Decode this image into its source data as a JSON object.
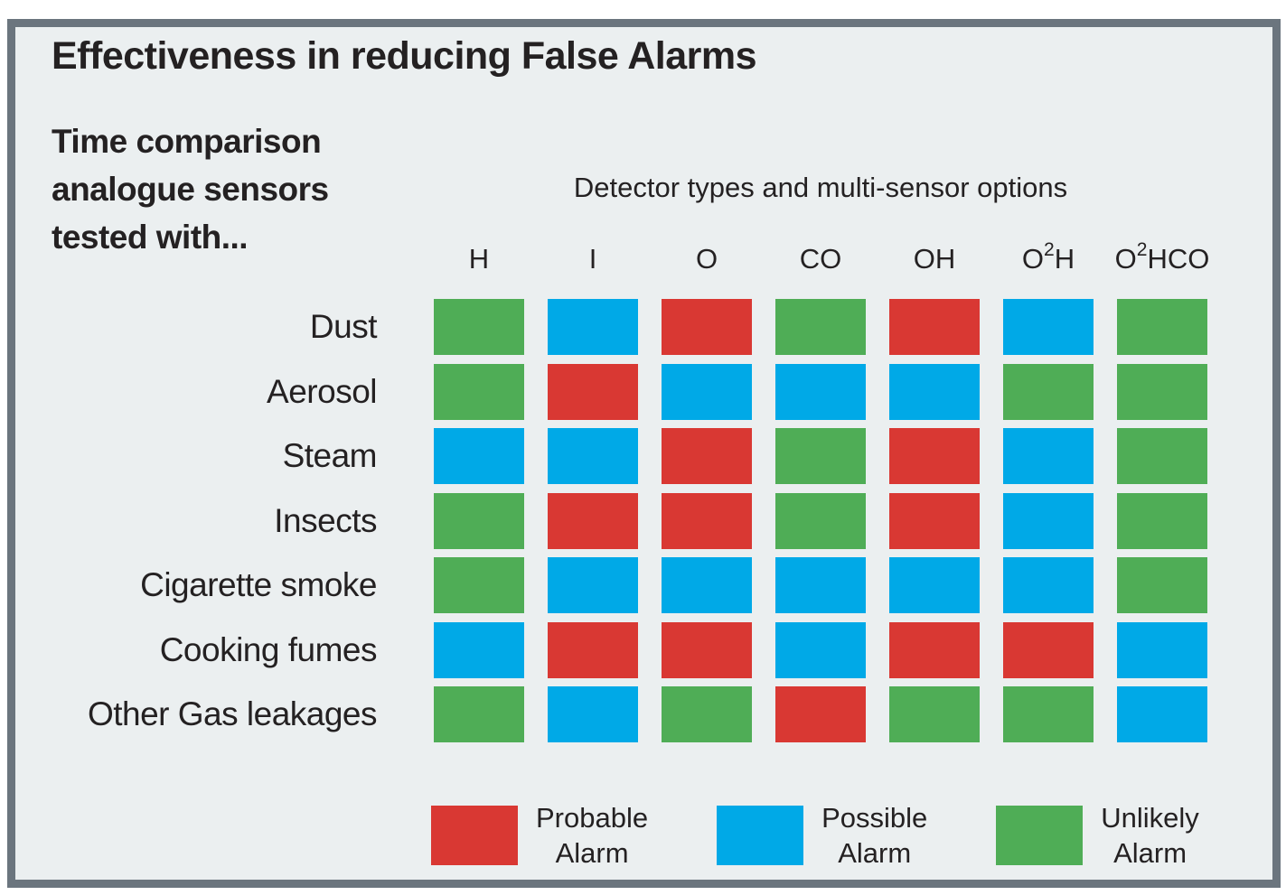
{
  "frame": {
    "background": "#ebeff0",
    "border_color": "#6b757e"
  },
  "title": "Effectiveness in reducing False Alarms",
  "subtitle": {
    "lines": [
      "Time comparison",
      "analogue sensors",
      "tested with..."
    ]
  },
  "chart_data": {
    "type": "heatmap",
    "title": "Effectiveness in reducing False Alarms",
    "matrix_header": "Detector types and multi-sensor options",
    "columns": [
      "H",
      "I",
      "O",
      "CO",
      "OH",
      "O^2H",
      "O^2HCO"
    ],
    "rows": [
      "Dust",
      "Aerosol",
      "Steam",
      "Insects",
      "Cigarette smoke",
      "Cooking fumes",
      "Other Gas leakages"
    ],
    "values": [
      [
        "unlikely",
        "possible",
        "probable",
        "unlikely",
        "probable",
        "possible",
        "unlikely"
      ],
      [
        "unlikely",
        "probable",
        "possible",
        "possible",
        "possible",
        "unlikely",
        "unlikely"
      ],
      [
        "possible",
        "possible",
        "probable",
        "unlikely",
        "probable",
        "possible",
        "unlikely"
      ],
      [
        "unlikely",
        "probable",
        "probable",
        "unlikely",
        "probable",
        "possible",
        "unlikely"
      ],
      [
        "unlikely",
        "possible",
        "possible",
        "possible",
        "possible",
        "possible",
        "unlikely"
      ],
      [
        "possible",
        "probable",
        "probable",
        "possible",
        "probable",
        "probable",
        "possible"
      ],
      [
        "unlikely",
        "possible",
        "unlikely",
        "probable",
        "unlikely",
        "unlikely",
        "possible"
      ]
    ],
    "colors": {
      "probable": "#d93833",
      "possible": "#00a9e7",
      "unlikely": "#4fad56"
    },
    "legend_position": "bottom",
    "legend": [
      {
        "key": "probable",
        "label_lines": [
          "Probable",
          "Alarm"
        ]
      },
      {
        "key": "possible",
        "label_lines": [
          "Possible",
          "Alarm"
        ]
      },
      {
        "key": "unlikely",
        "label_lines": [
          "Unlikely",
          "Alarm"
        ]
      }
    ]
  }
}
